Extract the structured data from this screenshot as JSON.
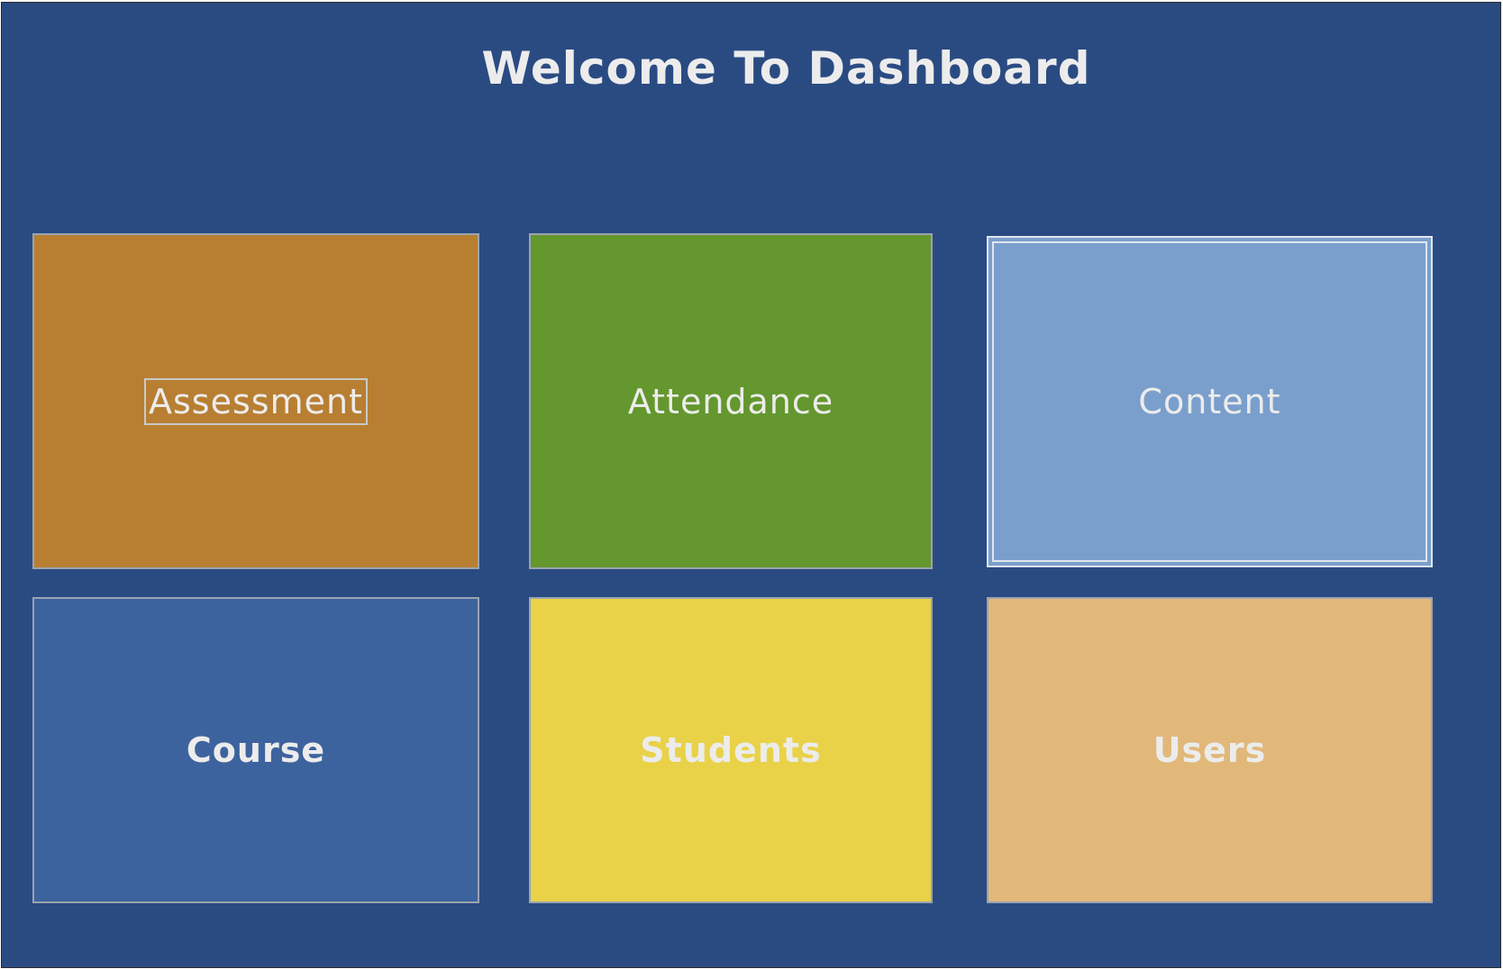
{
  "dashboard": {
    "title": "Welcome To Dashboard",
    "colors": {
      "background": "#2a4b82",
      "text": "#ececec"
    },
    "tiles": [
      {
        "id": "assessment",
        "label": "Assessment",
        "color": "#b87f32"
      },
      {
        "id": "attendance",
        "label": "Attendance",
        "color": "#64972e"
      },
      {
        "id": "content",
        "label": "Content",
        "color": "#7a9fcc"
      },
      {
        "id": "course",
        "label": "Course",
        "color": "#3d639e"
      },
      {
        "id": "students",
        "label": "Students",
        "color": "#e9d248"
      },
      {
        "id": "users",
        "label": "Users",
        "color": "#e1b87a"
      }
    ]
  }
}
